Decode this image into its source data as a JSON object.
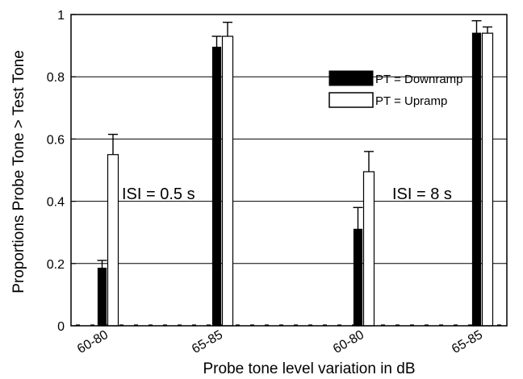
{
  "chart_data": {
    "type": "bar",
    "xlabel": "Probe tone level variation in dB",
    "ylabel": "Proportions Probe Tone > Test Tone",
    "ylim": [
      0,
      1
    ],
    "yticks": [
      0,
      0.2,
      0.4,
      0.6,
      0.8,
      1
    ],
    "ytick_labels": [
      "0",
      "0.2",
      "0.4",
      "0.6",
      "0.8",
      "1"
    ],
    "grid": "horizontal",
    "categories": [
      "60-80",
      "65-85",
      "60-80",
      "65-85"
    ],
    "series": [
      {
        "name": "PT = Downramp",
        "color": "#000000",
        "values": [
          0.185,
          0.895,
          0.31,
          0.94
        ],
        "errors": [
          0.025,
          0.035,
          0.07,
          0.04
        ]
      },
      {
        "name": "PT = Upramp",
        "color": "#ffffff",
        "values": [
          0.55,
          0.93,
          0.495,
          0.94
        ],
        "errors": [
          0.065,
          0.045,
          0.065,
          0.02
        ]
      }
    ],
    "annotations": [
      "ISI = 0.5 s",
      "ISI = 8 s"
    ],
    "legend_position": "top-right"
  }
}
